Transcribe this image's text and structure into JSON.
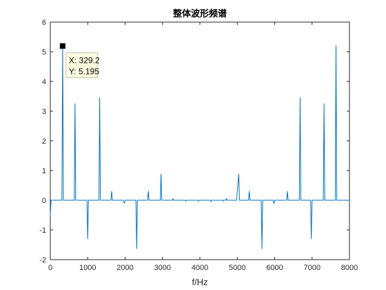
{
  "chart_data": {
    "type": "line",
    "title": "整体波形频谱",
    "xlabel": "f/Hz",
    "ylabel": "",
    "xlim": [
      0,
      8000
    ],
    "ylim": [
      -2,
      6
    ],
    "xticks": [
      0,
      1000,
      2000,
      3000,
      4000,
      5000,
      6000,
      7000,
      8000
    ],
    "yticks": [
      -2,
      -1,
      0,
      1,
      2,
      3,
      4,
      5,
      6
    ],
    "grid": false,
    "series_color": "#0072BD",
    "series": [
      {
        "x": [
          0,
          20,
          310,
          329.2,
          350,
          640,
          660,
          680,
          980,
          1000,
          1020,
          1300,
          1320,
          1340,
          1620,
          1640,
          1660,
          1950,
          1980,
          2000,
          2290,
          2310,
          2330,
          2600,
          2620,
          2640,
          2940,
          2960,
          2980,
          3260,
          3280,
          3300,
          3600,
          3620,
          3640,
          3940,
          3960,
          3980,
          4280,
          4300,
          4320,
          4600,
          4620,
          4640,
          4690,
          4710,
          4730,
          4960,
          4980,
          5040,
          5060,
          5300,
          5320,
          5340,
          5640,
          5660,
          5680,
          5960,
          5980,
          6000,
          6320,
          6340,
          6360,
          6660,
          6680,
          6700,
          6960,
          6980,
          7000,
          7300,
          7320,
          7340,
          7620,
          7640,
          7660,
          8000
        ],
        "y": [
          -0.5,
          0,
          0,
          5.195,
          0,
          0,
          3.25,
          0,
          0,
          -1.3,
          0,
          0,
          3.45,
          0,
          0,
          0.3,
          0,
          0,
          -0.1,
          0,
          0,
          -1.63,
          0,
          0,
          0.3,
          0,
          0,
          0.88,
          0,
          0,
          0.05,
          0,
          0,
          -0.03,
          0,
          0,
          -0.04,
          0,
          0,
          -0.05,
          0,
          0,
          -0.03,
          0,
          0,
          0.06,
          0,
          0,
          0,
          0.88,
          0,
          0,
          0.3,
          0,
          0,
          -1.63,
          0,
          0,
          -0.12,
          0,
          0,
          0.3,
          0,
          0,
          3.45,
          0,
          0,
          -1.3,
          0,
          0,
          3.25,
          0,
          0,
          5.2,
          0,
          0
        ]
      }
    ],
    "datatip": {
      "x": 329.2,
      "y": 5.195,
      "x_text": "X: 329.2",
      "y_text": "Y: 5.195"
    }
  }
}
